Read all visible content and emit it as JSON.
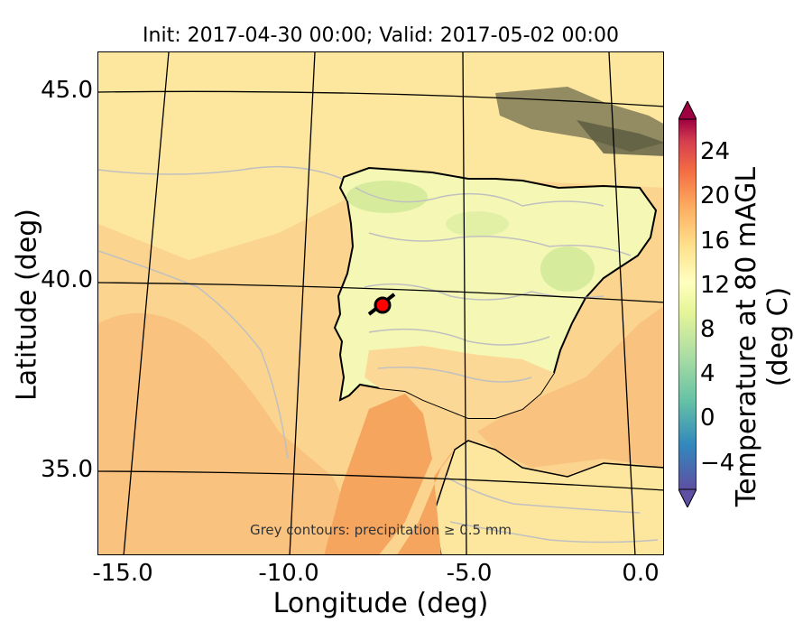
{
  "title": "Init: 2017-04-30 00:00; Valid: 2017-05-02 00:00",
  "xaxis": {
    "label": "Longitude (deg)",
    "ticks": [
      "-15.0",
      "-10.0",
      "-5.0",
      "0.0"
    ]
  },
  "yaxis": {
    "label": "Latitude (deg)",
    "ticks": [
      "45.0",
      "40.0",
      "35.0"
    ]
  },
  "colorbar": {
    "label": "Temperature at 80 mAGL (deg C)",
    "ticks": [
      "24",
      "20",
      "16",
      "12",
      "8",
      "4",
      "0",
      "−4"
    ],
    "range": [
      -6,
      28
    ],
    "colormap": "Spectral_r"
  },
  "note": "Grey contours: precipitation ≥ 0.5 mm",
  "marker": {
    "color": "#ff0000",
    "outline": "#000000"
  },
  "colors": {
    "ocean_warm": "#f9c27e",
    "ocean_mid": "#fbd58f",
    "ocean_cool": "#fde69e",
    "land_cool": "#f4f8b4",
    "land_warm": "#fbd896",
    "africa": "#f5a55e",
    "precip_contour": "#c0c0c0",
    "dark_precip": "#5a5a40"
  }
}
